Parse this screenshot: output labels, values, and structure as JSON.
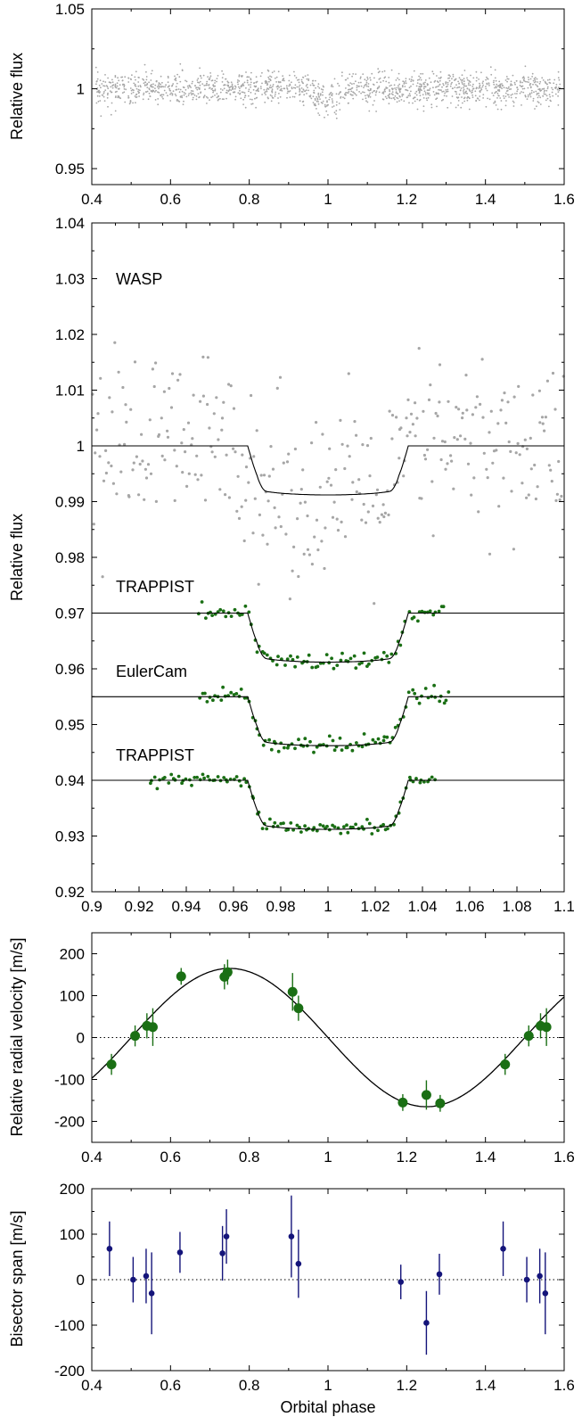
{
  "colors": {
    "wasp": "#a6a6a6",
    "green": "#1a6f14",
    "blue": "#14147a",
    "model": "#000000"
  },
  "chart_data": [
    {
      "type": "scatter",
      "ylabel": "Relative flux",
      "xlim": [
        0.4,
        1.6
      ],
      "ylim": [
        0.94,
        1.05
      ],
      "xticks": [
        "0.4",
        "0.6",
        "0.8",
        "1",
        "1.2",
        "1.4",
        "1.6"
      ],
      "yticks": [
        "0.95",
        "1",
        "1.05"
      ],
      "series": [
        {
          "description": "full-phase WASP photometry, approx. 1500 points, scatter ~0.007 around 1.00",
          "mean": 1.0,
          "scatter": 0.007,
          "n_points": 1500,
          "transit_phase": 1.0
        }
      ]
    },
    {
      "type": "scatter",
      "ylabel": "Relative flux",
      "xlim": [
        0.9,
        1.1
      ],
      "ylim": [
        0.92,
        1.04
      ],
      "xticks": [
        "0.9",
        "0.92",
        "0.94",
        "0.96",
        "0.98",
        "1",
        "1.02",
        "1.04",
        "1.06",
        "1.08",
        "1.1"
      ],
      "yticks": [
        "0.92",
        "0.93",
        "0.94",
        "0.95",
        "0.96",
        "0.97",
        "0.98",
        "0.99",
        "1",
        "1.01",
        "1.02",
        "1.03",
        "1.04"
      ],
      "annotations": [
        "WASP",
        "TRAPPIST",
        "EulerCam",
        "TRAPPIST"
      ],
      "transit_model": {
        "ingress_start": 0.966,
        "ingress_end": 0.974,
        "egress_start": 1.026,
        "egress_end": 1.034,
        "depth": 0.0088
      },
      "series": [
        {
          "label": "WASP",
          "baseline": 1.0,
          "x_range": [
            0.9,
            1.1
          ],
          "scatter": 0.008,
          "n_points": 330
        },
        {
          "label": "TRAPPIST",
          "baseline": 0.97,
          "x_range": [
            0.945,
            1.05
          ],
          "scatter": 0.0008,
          "n_points": 90
        },
        {
          "label": "EulerCam",
          "baseline": 0.955,
          "x_range": [
            0.945,
            1.052
          ],
          "scatter": 0.0008,
          "n_points": 95
        },
        {
          "label": "TRAPPIST",
          "baseline": 0.94,
          "x_range": [
            0.924,
            1.046
          ],
          "scatter": 0.0005,
          "n_points": 110
        }
      ]
    },
    {
      "type": "scatter",
      "ylabel": "Relative radial velocity [m/s]",
      "xlim": [
        0.4,
        1.6
      ],
      "ylim": [
        -250,
        250
      ],
      "xticks": [
        "0.4",
        "0.6",
        "0.8",
        "1",
        "1.2",
        "1.4",
        "1.6"
      ],
      "yticks": [
        "-200",
        "-100",
        "0",
        "100",
        "200"
      ],
      "model": {
        "type": "sinusoid",
        "amplitude": 165,
        "peak_phase": 0.75
      },
      "points": [
        {
          "x": 0.45,
          "y": -64,
          "err": 25
        },
        {
          "x": 0.51,
          "y": 4,
          "err": 25
        },
        {
          "x": 0.54,
          "y": 28,
          "err": 30
        },
        {
          "x": 0.555,
          "y": 25,
          "err": 45
        },
        {
          "x": 0.627,
          "y": 146,
          "err": 20
        },
        {
          "x": 0.737,
          "y": 145,
          "err": 30
        },
        {
          "x": 0.745,
          "y": 156,
          "err": 30
        },
        {
          "x": 0.91,
          "y": 109,
          "err": 45
        },
        {
          "x": 0.925,
          "y": 70,
          "err": 30
        },
        {
          "x": 1.19,
          "y": -155,
          "err": 20
        },
        {
          "x": 1.25,
          "y": -137,
          "err": 35
        },
        {
          "x": 1.285,
          "y": -157,
          "err": 20
        },
        {
          "x": 1.45,
          "y": -64,
          "err": 25
        },
        {
          "x": 1.51,
          "y": 4,
          "err": 25
        },
        {
          "x": 1.54,
          "y": 28,
          "err": 30
        },
        {
          "x": 1.555,
          "y": 25,
          "err": 45
        }
      ]
    },
    {
      "type": "scatter",
      "ylabel": "Bisector span [m/s]",
      "xlabel": "Orbital phase",
      "xlim": [
        0.4,
        1.6
      ],
      "ylim": [
        -200,
        200
      ],
      "xticks": [
        "0.4",
        "0.6",
        "0.8",
        "1",
        "1.2",
        "1.4",
        "1.6"
      ],
      "yticks": [
        "-200",
        "-100",
        "0",
        "100",
        "200"
      ],
      "points": [
        {
          "x": 0.445,
          "y": 68,
          "err": 60
        },
        {
          "x": 0.505,
          "y": 0,
          "err": 50
        },
        {
          "x": 0.538,
          "y": 8,
          "err": 60
        },
        {
          "x": 0.552,
          "y": -30,
          "err": 90
        },
        {
          "x": 0.624,
          "y": 60,
          "err": 45
        },
        {
          "x": 0.732,
          "y": 58,
          "err": 60
        },
        {
          "x": 0.742,
          "y": 95,
          "err": 60
        },
        {
          "x": 0.907,
          "y": 95,
          "err": 90
        },
        {
          "x": 0.925,
          "y": 35,
          "err": 75
        },
        {
          "x": 1.185,
          "y": -5,
          "err": 38
        },
        {
          "x": 1.25,
          "y": -95,
          "err": 70
        },
        {
          "x": 1.283,
          "y": 12,
          "err": 45
        },
        {
          "x": 1.445,
          "y": 68,
          "err": 60
        },
        {
          "x": 1.505,
          "y": 0,
          "err": 50
        },
        {
          "x": 1.538,
          "y": 8,
          "err": 60
        },
        {
          "x": 1.552,
          "y": -30,
          "err": 90
        }
      ]
    }
  ]
}
